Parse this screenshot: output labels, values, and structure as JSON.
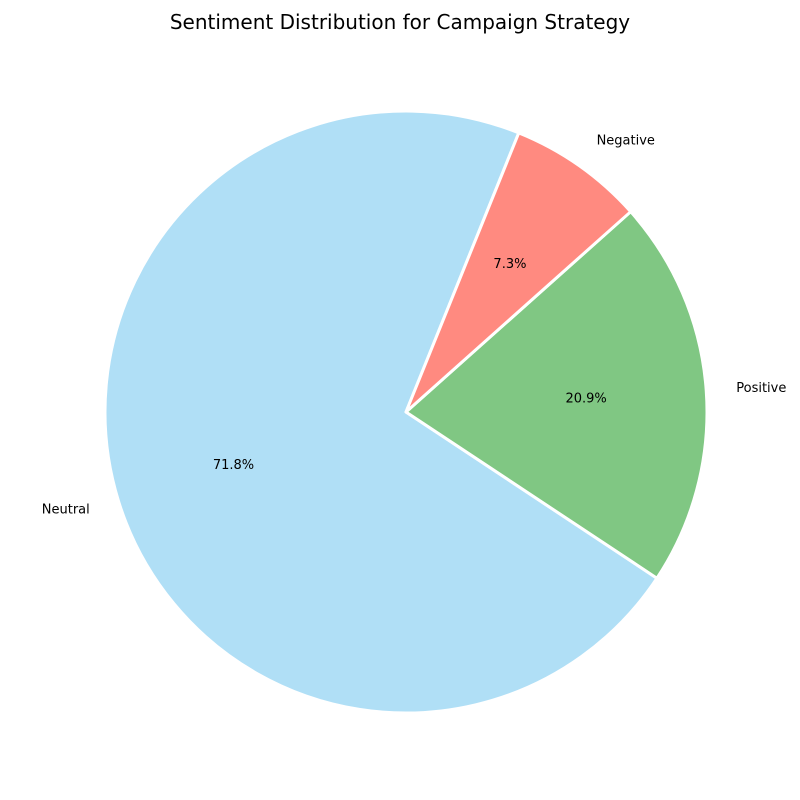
{
  "chart_data": {
    "type": "pie",
    "title": "Sentiment Distribution for Campaign Strategy",
    "slices": [
      {
        "label": "Neutral",
        "value": 71.8,
        "pct_label": "71.8%",
        "color": "#b0dff6"
      },
      {
        "label": "Positive",
        "value": 20.9,
        "pct_label": "20.9%",
        "color": "#80c783"
      },
      {
        "label": "Negative",
        "value": 7.3,
        "pct_label": "7.3%",
        "color": "#ff8a80"
      }
    ],
    "start_angle_deg": 68,
    "direction": "counterclockwise",
    "legend": "none"
  }
}
